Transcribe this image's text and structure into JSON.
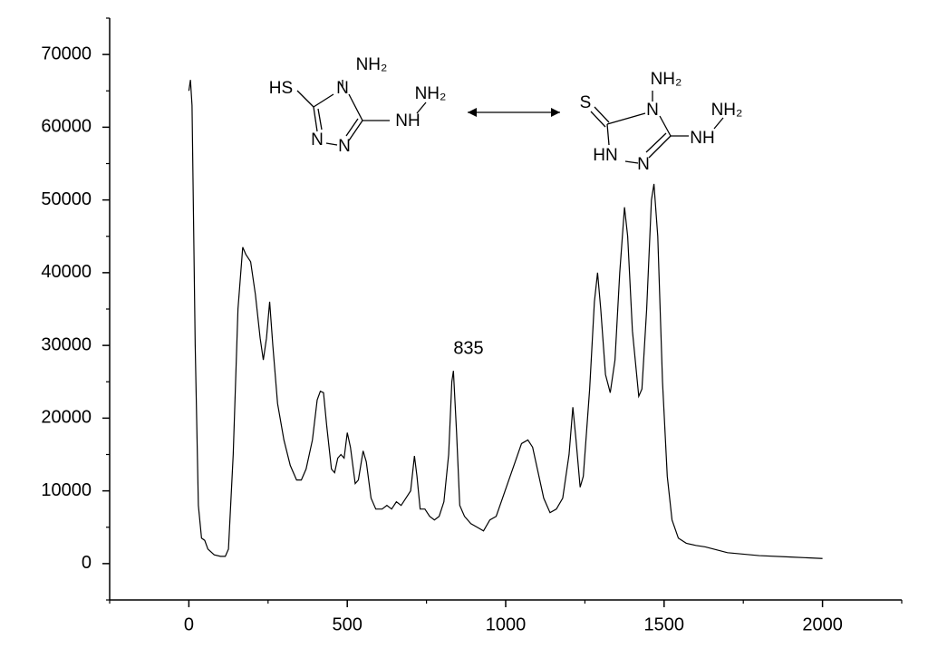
{
  "chart_data": {
    "type": "line",
    "x": [
      0,
      5,
      10,
      20,
      30,
      40,
      50,
      60,
      80,
      100,
      115,
      125,
      140,
      155,
      170,
      180,
      195,
      210,
      225,
      235,
      245,
      255,
      265,
      280,
      300,
      320,
      340,
      355,
      370,
      390,
      405,
      415,
      425,
      435,
      450,
      460,
      470,
      480,
      490,
      500,
      510,
      525,
      535,
      550,
      560,
      575,
      590,
      610,
      625,
      640,
      655,
      670,
      685,
      700,
      712,
      720,
      730,
      745,
      760,
      775,
      790,
      805,
      820,
      830,
      835,
      845,
      855,
      870,
      890,
      910,
      930,
      950,
      970,
      990,
      1010,
      1030,
      1050,
      1070,
      1085,
      1100,
      1120,
      1140,
      1160,
      1180,
      1200,
      1212,
      1222,
      1235,
      1245,
      1265,
      1280,
      1290,
      1300,
      1315,
      1330,
      1345,
      1360,
      1375,
      1385,
      1400,
      1420,
      1430,
      1445,
      1460,
      1468,
      1480,
      1495,
      1510,
      1525,
      1545,
      1570,
      1600,
      1630,
      1700,
      1800,
      1900,
      2000
    ],
    "series": [
      {
        "color": "#000000",
        "values": [
          65000,
          66500,
          63000,
          30000,
          8000,
          3500,
          3200,
          2000,
          1200,
          1000,
          1000,
          2000,
          15000,
          35000,
          43500,
          42500,
          41500,
          37000,
          31000,
          28000,
          31000,
          36000,
          30000,
          22000,
          17000,
          13500,
          11500,
          11500,
          13000,
          17000,
          22500,
          23700,
          23500,
          19000,
          13000,
          12500,
          14500,
          15000,
          14500,
          18000,
          16000,
          11000,
          11500,
          15500,
          14000,
          9000,
          7500,
          7500,
          8000,
          7500,
          8500,
          8000,
          9000,
          10000,
          14800,
          12000,
          7500,
          7500,
          6500,
          6000,
          6500,
          8500,
          15000,
          25000,
          26500,
          18000,
          8000,
          6500,
          5500,
          5000,
          4500,
          6000,
          6500,
          9000,
          11500,
          14000,
          16500,
          17000,
          16000,
          13000,
          9000,
          7000,
          7500,
          9000,
          15000,
          21500,
          17000,
          10500,
          12000,
          24000,
          36000,
          40000,
          35000,
          26000,
          23500,
          28000,
          40000,
          49000,
          45000,
          32000,
          23000,
          24000,
          35000,
          50000,
          52200,
          45000,
          25000,
          12000,
          6000,
          3500,
          2800,
          2500,
          2300,
          1500,
          1100,
          900,
          700
        ]
      }
    ],
    "xlim": [
      -250,
      2250
    ],
    "xticks": [
      0,
      500,
      1000,
      1500,
      2000
    ],
    "xminorticks": [
      -250,
      250,
      750,
      1250,
      1750,
      2250
    ],
    "ylim": [
      -5000,
      75000
    ],
    "yticks": [
      0,
      10000,
      20000,
      30000,
      40000,
      50000,
      60000,
      70000
    ],
    "yminorticks": [
      -5000,
      5000,
      15000,
      25000,
      35000,
      45000,
      55000,
      65000,
      75000
    ],
    "annotations": [
      {
        "label": "835",
        "x": 835,
        "y": 29500
      }
    ],
    "structures": [
      {
        "labels": [
          "HS",
          "NH₂",
          "N",
          "N",
          "N",
          "NH",
          "NH₂"
        ]
      },
      {
        "labels": [
          "S",
          "NH₂",
          "N",
          "NH₂",
          "NH",
          "HN",
          "N"
        ]
      }
    ]
  }
}
